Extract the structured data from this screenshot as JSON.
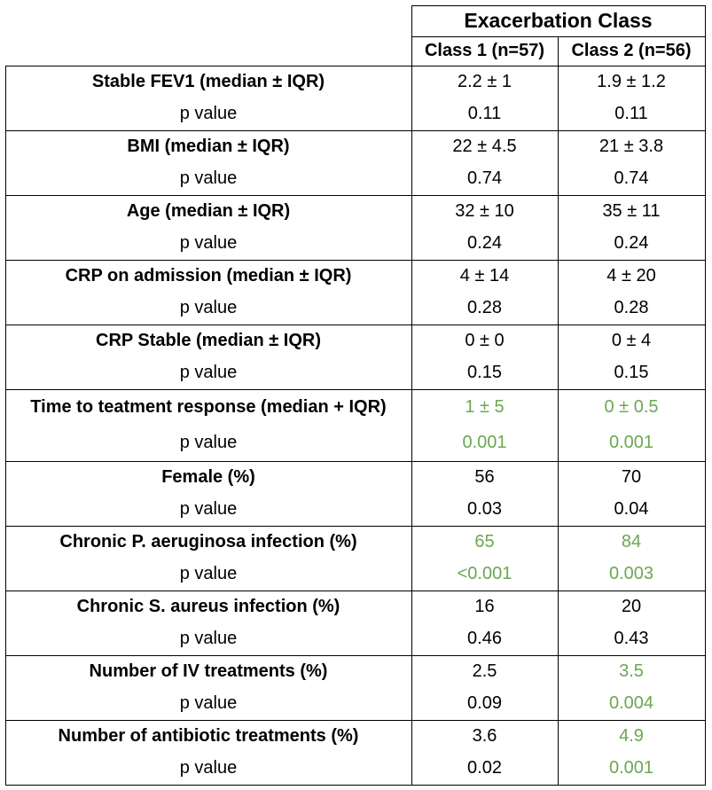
{
  "header": {
    "title": "Exacerbation Class",
    "class1": "Class 1 (n=57)",
    "class2": "Class 2 (n=56)"
  },
  "rows": [
    {
      "label": "Stable FEV1 (median ± IQR)",
      "sub": "p value",
      "c1": "2.2 ± 1",
      "c2": "1.9 ± 1.2",
      "p1": "0.11",
      "p2": "0.11"
    },
    {
      "label": "BMI (median ± IQR)",
      "sub": "p value",
      "c1": "22 ± 4.5",
      "c2": "21 ± 3.8",
      "p1": "0.74",
      "p2": "0.74"
    },
    {
      "label": "Age (median ± IQR)",
      "sub": "p value",
      "c1": "32 ± 10",
      "c2": "35 ± 11",
      "p1": "0.24",
      "p2": "0.24"
    },
    {
      "label": "CRP on admission (median ± IQR)",
      "sub": "p value",
      "c1": "4 ± 14",
      "c2": "4 ± 20",
      "p1": "0.28",
      "p2": "0.28"
    },
    {
      "label": "CRP Stable (median ± IQR)",
      "sub": "p value",
      "c1": "0 ± 0",
      "c2": "0 ± 4",
      "p1": "0.15",
      "p2": "0.15"
    },
    {
      "label": "Time to teatment response (median + IQR)",
      "sub": "p value",
      "c1": "1 ± 5",
      "c2": "0 ± 0.5",
      "p1": "0.001",
      "p2": "0.001"
    },
    {
      "label": "Female (%)",
      "sub": "p value",
      "c1": "56",
      "c2": "70",
      "p1": "0.03",
      "p2": "0.04"
    },
    {
      "label": "Chronic P. aeruginosa infection (%)",
      "sub": "p value",
      "c1": "65",
      "c2": "84",
      "p1": "<0.001",
      "p2": "0.003"
    },
    {
      "label": "Chronic S. aureus infection (%)",
      "sub": "p value",
      "c1": "16",
      "c2": "20",
      "p1": "0.46",
      "p2": "0.43"
    },
    {
      "label": "Number of IV treatments (%)",
      "sub": "p value",
      "c1": "2.5",
      "c2": "3.5",
      "p1": "0.09",
      "p2": "0.004"
    },
    {
      "label": "Number of antibiotic treatments (%)",
      "sub": "p value",
      "c1": "3.6",
      "c2": "4.9",
      "p1": "0.02",
      "p2": "0.001"
    }
  ],
  "colors": {
    "significant": "#6aa84f",
    "default": "#000000",
    "lines": "#000000"
  }
}
